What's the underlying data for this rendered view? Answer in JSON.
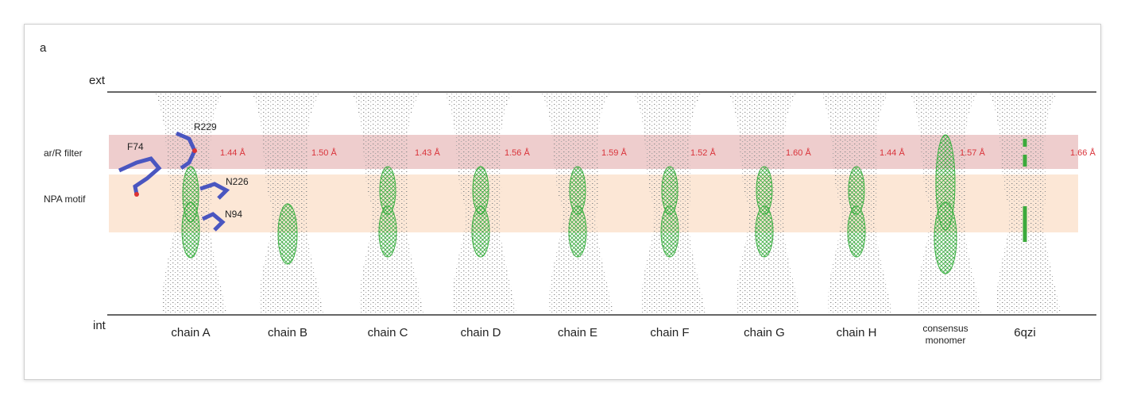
{
  "panel_label": "a",
  "axis": {
    "top": "ext",
    "bottom": "int"
  },
  "regions": [
    {
      "label": "ar/R filter"
    },
    {
      "label": "NPA motif"
    }
  ],
  "residues": [
    "F74",
    "R229",
    "N226",
    "N94"
  ],
  "columns": [
    {
      "label": "chain A",
      "distance": "1.44 Å"
    },
    {
      "label": "chain B",
      "distance": "1.50 Å"
    },
    {
      "label": "chain C",
      "distance": "1.43 Å"
    },
    {
      "label": "chain D",
      "distance": "1.56 Å"
    },
    {
      "label": "chain E",
      "distance": "1.59 Å"
    },
    {
      "label": "chain F",
      "distance": "1.52 Å"
    },
    {
      "label": "chain G",
      "distance": "1.60 Å"
    },
    {
      "label": "chain H",
      "distance": "1.44 Å"
    },
    {
      "label": "consensus monomer",
      "distance": "1.57 Å"
    },
    {
      "label": "6qzi",
      "distance": "1.66 Å"
    }
  ]
}
